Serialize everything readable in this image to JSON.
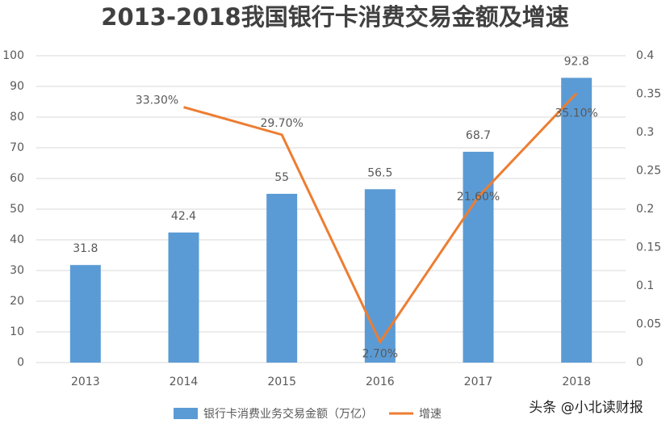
{
  "chart_data": {
    "type": "bar",
    "title": "2013-2018我国银行卡消费交易金额及增速",
    "categories": [
      "2013",
      "2014",
      "2015",
      "2016",
      "2017",
      "2018"
    ],
    "series": [
      {
        "name": "银行卡消费业务交易金额（万亿）",
        "type": "bar",
        "color": "#5b9bd5",
        "values": [
          31.8,
          42.4,
          55,
          56.5,
          68.7,
          92.8
        ]
      },
      {
        "name": "增速",
        "type": "line",
        "axis": "y2",
        "color": "#ed7d31",
        "values": [
          null,
          0.333,
          0.297,
          0.027,
          0.216,
          0.351
        ],
        "value_labels": [
          null,
          "33.30%",
          "29.70%",
          "2.70%",
          "21.60%",
          "35.10%"
        ]
      }
    ],
    "ylim": [
      0,
      100
    ],
    "yticks": [
      0,
      10,
      20,
      30,
      40,
      50,
      60,
      70,
      80,
      90,
      100
    ],
    "y2lim": [
      0,
      0.4
    ],
    "y2ticks": [
      0,
      0.05,
      0.1,
      0.15,
      0.2,
      0.25,
      0.3,
      0.35,
      0.4
    ],
    "grid": true,
    "legend": "bottom",
    "watermark": "头条 @小北读财报"
  }
}
